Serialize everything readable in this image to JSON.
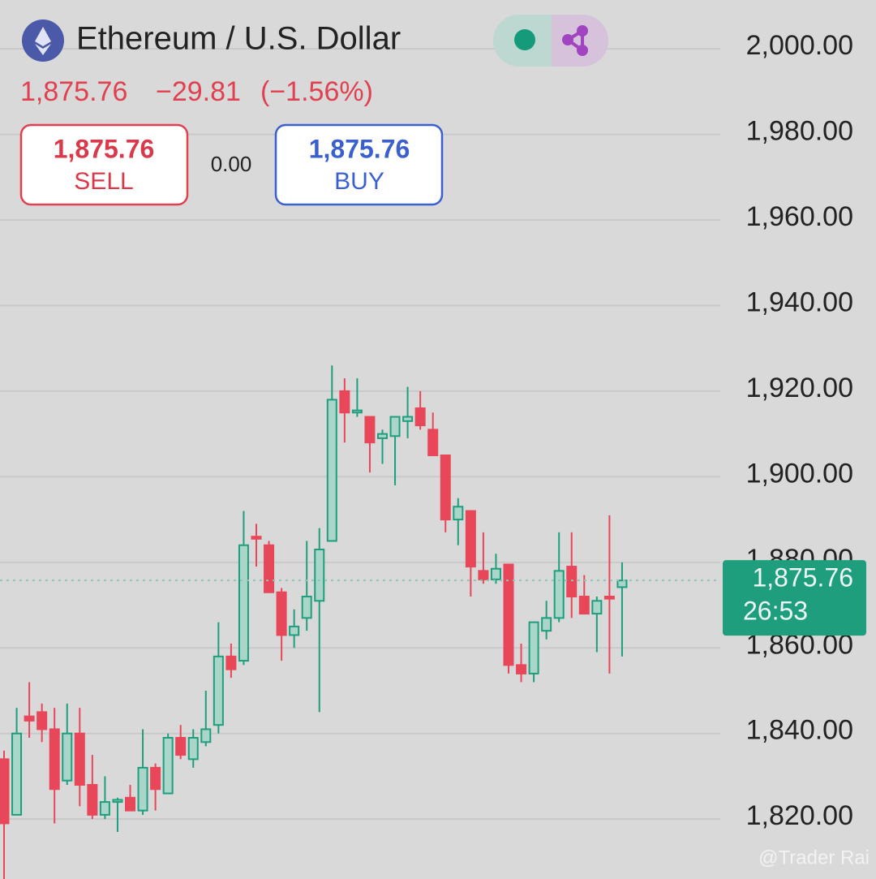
{
  "header": {
    "title": "Ethereum / U.S. Dollar",
    "price": "1,875.76",
    "change": "−29.81",
    "change_pct": "(−1.56%)",
    "sell_price": "1,875.76",
    "sell_label": "SELL",
    "spread": "0.00",
    "buy_price": "1,875.76",
    "buy_label": "BUY"
  },
  "watermark": "@Trader Rai",
  "chart_data": {
    "type": "candlestick",
    "up_color": "#1f9e7e",
    "down_color": "#e8475a",
    "ylim": [
      1806,
      2011.4
    ],
    "yticks": [
      {
        "value": 1820,
        "label": "1,820.00"
      },
      {
        "value": 1840,
        "label": "1,840.00"
      },
      {
        "value": 1860,
        "label": "1,860.00"
      },
      {
        "value": 1880,
        "label": "1,880.00"
      },
      {
        "value": 1900,
        "label": "1,900.00"
      },
      {
        "value": 1920,
        "label": "1,920.00"
      },
      {
        "value": 1940,
        "label": "1,940.00"
      },
      {
        "value": 1960,
        "label": "1,960.00"
      },
      {
        "value": 1980,
        "label": "1,980.00"
      },
      {
        "value": 2000,
        "label": "2,000.00"
      }
    ],
    "grid": true,
    "last_price": {
      "value": 1875.76,
      "label": "1,875.76"
    },
    "countdown": "26:53",
    "open": [
      1834,
      1821,
      1844,
      1845,
      1841,
      1829,
      1840,
      1828,
      1821,
      1824,
      1825,
      1822,
      1832,
      1826,
      1839,
      1834,
      1838,
      1842,
      1858,
      1857,
      1886,
      1884,
      1873,
      1863,
      1867,
      1871,
      1885,
      1920,
      1915,
      1914,
      1909,
      1909.5,
      1913,
      1916,
      1911,
      1905,
      1890,
      1892,
      1878,
      1876,
      1879.5,
      1856,
      1854,
      1864,
      1867,
      1879,
      1872,
      1868,
      1872,
      1874.2
    ],
    "high": [
      1836,
      1846,
      1852,
      1847,
      1846,
      1847,
      1846,
      1835,
      1830,
      1825,
      1828,
      1841,
      1833,
      1840,
      1842,
      1841,
      1850,
      1866,
      1861,
      1892,
      1889,
      1885,
      1874,
      1869,
      1885,
      1888,
      1926,
      1923,
      1923,
      1914,
      1911,
      1914,
      1921,
      1920,
      1915,
      1905,
      1895,
      1892,
      1887,
      1882,
      1879.5,
      1861,
      1866,
      1871,
      1887,
      1887,
      1877,
      1872,
      1891,
      1880
    ],
    "low": [
      1806,
      1821,
      1839,
      1838,
      1819,
      1828,
      1823,
      1820,
      1820,
      1817,
      1822,
      1821,
      1822,
      1826,
      1834,
      1832,
      1837,
      1840,
      1853,
      1856,
      1879,
      1873,
      1857,
      1860,
      1864,
      1845,
      1885,
      1908,
      1914,
      1901,
      1903,
      1898,
      1909,
      1911,
      1905,
      1887,
      1884,
      1872,
      1875,
      1875,
      1854,
      1852,
      1852,
      1862,
      1866,
      1867,
      1868,
      1859,
      1854,
      1858
    ],
    "close": [
      1819,
      1840,
      1843,
      1841,
      1827,
      1840,
      1828,
      1821,
      1824,
      1824.5,
      1822,
      1832,
      1827,
      1839,
      1835,
      1839,
      1841,
      1858,
      1855,
      1884,
      1885.5,
      1873,
      1863,
      1865,
      1872,
      1883,
      1918,
      1915,
      1915.5,
      1908,
      1910,
      1914,
      1914,
      1912,
      1905,
      1890,
      1893,
      1879,
      1876,
      1878.5,
      1856,
      1854,
      1866,
      1867,
      1878,
      1872,
      1868,
      1871,
      1871.5,
      1875.76
    ]
  }
}
